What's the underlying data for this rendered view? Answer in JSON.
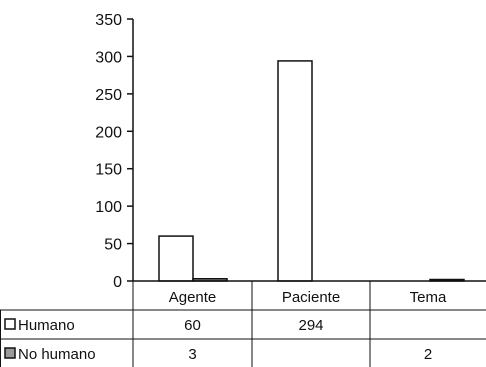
{
  "chart_data": {
    "type": "bar",
    "categories": [
      "Agente",
      "Paciente",
      "Tema"
    ],
    "series": [
      {
        "name": "Humano",
        "values": [
          60,
          294,
          null
        ]
      },
      {
        "name": "No humano",
        "values": [
          3,
          null,
          2
        ]
      }
    ],
    "ylim": [
      0,
      350
    ],
    "yticks": [
      0,
      50,
      100,
      150,
      200,
      250,
      300,
      350
    ],
    "ytick_labels": [
      "0",
      "50",
      "100",
      "150",
      "200",
      "250",
      "300",
      "350"
    ],
    "table": {
      "rows": [
        {
          "legend": "Humano",
          "cells": [
            "60",
            "294",
            ""
          ]
        },
        {
          "legend": "No humano",
          "cells": [
            "3",
            "",
            "2"
          ]
        }
      ]
    },
    "colors": {
      "humano_fill": "#ffffff",
      "no_humano_fill": "#9a9a9a",
      "stroke": "#111111"
    },
    "grid": false
  }
}
